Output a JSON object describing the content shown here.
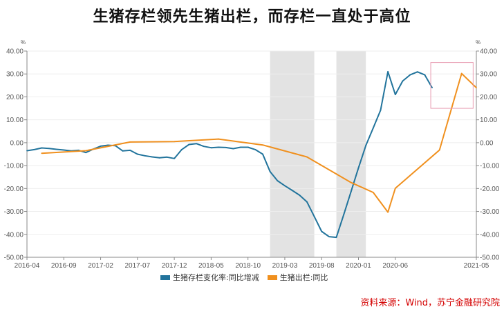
{
  "title": "生猪存栏领先生猪出栏，而存栏一直处于高位",
  "source": "资料来源：Wind，苏宁金融研究院",
  "colors": {
    "series_1": "#22749c",
    "series_2": "#f0901e",
    "shade": "#e3e3e3",
    "highlight_box": "#e89ab0",
    "axis": "#888888",
    "tick_text": "#555555",
    "grid": "#eeeeee"
  },
  "chart_data": {
    "type": "line",
    "title": "",
    "xlabel": "",
    "ylabel_left": "%",
    "ylabel_right": "%",
    "x_ticks": [
      "2016-04",
      "2016-09",
      "2017-02",
      "2017-07",
      "2017-12",
      "2018-05",
      "2018-10",
      "2019-03",
      "2019-08",
      "2020-01",
      "2020-06",
      "2021-05"
    ],
    "ylim": [
      -50,
      40
    ],
    "y_ticks": [
      "40.00",
      "30.00",
      "20.00",
      "10.00",
      "0.00",
      "-10.00",
      "-20.00",
      "-30.00",
      "-40.00",
      "-50.00"
    ],
    "grid": "horizontal",
    "legend_position": "bottom",
    "shaded_ranges": [
      [
        "2019-01",
        "2019-07"
      ],
      [
        "2019-10",
        "2020-02"
      ]
    ],
    "highlight_box": {
      "x_range": [
        "2020-11",
        "2021-04"
      ],
      "y_range": [
        15,
        35
      ]
    },
    "series": [
      {
        "name": "生猪存栏变化率:同比增减",
        "axis": "left",
        "points": [
          [
            "2016-04",
            -3.5
          ],
          [
            "2016-05",
            -3.0
          ],
          [
            "2016-06",
            -2.3
          ],
          [
            "2016-07",
            -2.5
          ],
          [
            "2016-08",
            -2.9
          ],
          [
            "2016-09",
            -3.2
          ],
          [
            "2016-10",
            -3.6
          ],
          [
            "2016-11",
            -3.3
          ],
          [
            "2016-12",
            -4.3
          ],
          [
            "2017-01",
            -2.8
          ],
          [
            "2017-02",
            -1.5
          ],
          [
            "2017-03",
            -1.1
          ],
          [
            "2017-04",
            -1.3
          ],
          [
            "2017-05",
            -3.6
          ],
          [
            "2017-06",
            -3.3
          ],
          [
            "2017-07",
            -5.0
          ],
          [
            "2017-08",
            -5.7
          ],
          [
            "2017-09",
            -6.2
          ],
          [
            "2017-10",
            -6.6
          ],
          [
            "2017-11",
            -6.3
          ],
          [
            "2017-12",
            -6.9
          ],
          [
            "2018-01",
            -3.0
          ],
          [
            "2018-02",
            -0.8
          ],
          [
            "2018-03",
            -0.4
          ],
          [
            "2018-04",
            -1.6
          ],
          [
            "2018-05",
            -2.2
          ],
          [
            "2018-06",
            -2.0
          ],
          [
            "2018-07",
            -2.1
          ],
          [
            "2018-08",
            -2.6
          ],
          [
            "2018-09",
            -2.0
          ],
          [
            "2018-10",
            -2.0
          ],
          [
            "2018-11",
            -3.0
          ],
          [
            "2018-12",
            -5.0
          ],
          [
            "2019-01",
            -12.6
          ],
          [
            "2019-02",
            -16.6
          ],
          [
            "2019-03",
            -18.8
          ],
          [
            "2019-04",
            -20.8
          ],
          [
            "2019-05",
            -22.9
          ],
          [
            "2019-06",
            -25.8
          ],
          [
            "2019-07",
            -32.2
          ],
          [
            "2019-08",
            -38.7
          ],
          [
            "2019-09",
            -41.0
          ],
          [
            "2019-10",
            -41.3
          ],
          [
            "2019-11",
            -31.4
          ],
          [
            "2019-12",
            -21.2
          ],
          [
            "2020-01",
            -11.0
          ],
          [
            "2020-02",
            -1.2
          ],
          [
            "2020-03",
            6.4
          ],
          [
            "2020-04",
            14.2
          ],
          [
            "2020-05",
            31.0
          ],
          [
            "2020-06",
            21.0
          ],
          [
            "2020-07",
            26.9
          ],
          [
            "2020-08",
            29.6
          ],
          [
            "2020-09",
            30.9
          ],
          [
            "2020-10",
            29.6
          ],
          [
            "2020-11",
            24.0
          ]
        ]
      },
      {
        "name": "生猪出栏:同比",
        "axis": "right",
        "points": [
          [
            "2016-06",
            -4.6
          ],
          [
            "2016-12",
            -3.5
          ],
          [
            "2017-06",
            0.3
          ],
          [
            "2017-12",
            0.5
          ],
          [
            "2018-06",
            1.6
          ],
          [
            "2018-12",
            -1.0
          ],
          [
            "2019-06",
            -6.2
          ],
          [
            "2019-12",
            -17.4
          ],
          [
            "2020-03",
            -21.7
          ],
          [
            "2020-05",
            -30.3
          ],
          [
            "2020-06",
            -19.9
          ],
          [
            "2020-12",
            -3.2
          ],
          [
            "2021-03",
            30.2
          ],
          [
            "2021-05",
            24.0
          ]
        ]
      }
    ]
  }
}
